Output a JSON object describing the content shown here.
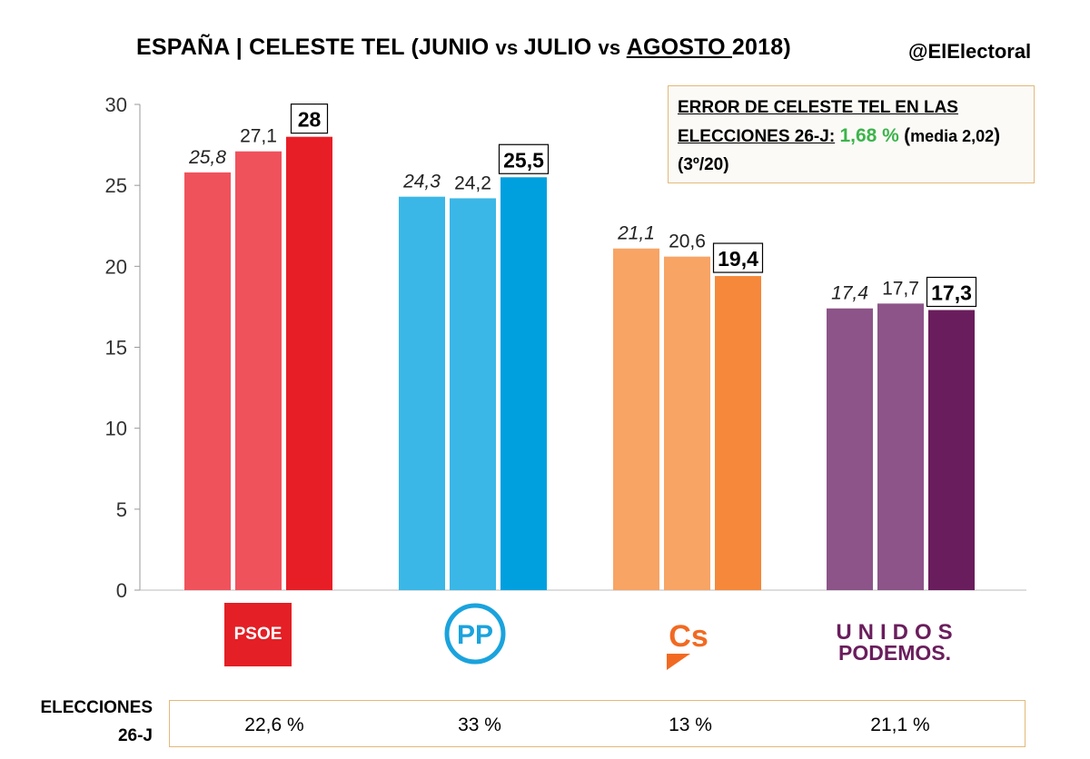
{
  "header": {
    "title_main": "ESPAÑA | CELESTE TEL (",
    "title_junio": "JUNIO ",
    "title_vs1": "vs ",
    "title_julio": "JULIO ",
    "title_vs2": "vs ",
    "title_agosto": "AGOSTO ",
    "title_year": "2018)",
    "handle": "@ElElectoral"
  },
  "error_box": {
    "line1": "ERROR DE CELESTE TEL EN LAS",
    "line2": "ELECCIONES 26-J:",
    "value": "1,68 %",
    "paren_open": "(",
    "avg": "media 2,02",
    "paren_close": ")",
    "rank": "(3º/20)"
  },
  "elections": {
    "label_line1": "ELECCIONES",
    "label_line2": "26-J",
    "values": [
      "22,6 %",
      "33 %",
      "13 %",
      "21,1 %"
    ]
  },
  "logos": {
    "psoe": "PSOE",
    "pp": "PP",
    "cs": "Cs",
    "podemos_line1": "UNIDOS",
    "podemos_line2": "PODEMOS."
  },
  "chart_data": {
    "type": "bar",
    "categories": [
      "PSOE",
      "PP",
      "Cs",
      "Unidos Podemos"
    ],
    "series": [
      {
        "name": "JUNIO",
        "values": [
          25.8,
          24.3,
          21.1,
          17.4
        ],
        "labels": [
          "25,8",
          "24,3",
          "21,1",
          "17,4"
        ]
      },
      {
        "name": "JULIO",
        "values": [
          27.1,
          24.2,
          20.6,
          17.7
        ],
        "labels": [
          "27,1",
          "24,2",
          "20,6",
          "17,7"
        ]
      },
      {
        "name": "AGOSTO",
        "values": [
          28,
          25.5,
          19.4,
          17.3
        ],
        "labels": [
          "28",
          "25,5",
          "19,4",
          "17,3"
        ]
      }
    ],
    "colors": [
      [
        "#f0525c",
        "#f0525c",
        "#e81e27"
      ],
      [
        "#3ab7e6",
        "#3ab7e6",
        "#00a0df"
      ],
      [
        "#f7a465",
        "#f7a465",
        "#f5883a"
      ],
      [
        "#8c5488",
        "#8c5488",
        "#6a1d5c"
      ]
    ],
    "ylim": [
      0,
      30
    ],
    "yticks": [
      0,
      5,
      10,
      15,
      20,
      25,
      30
    ],
    "grid": false,
    "legend": "none"
  }
}
